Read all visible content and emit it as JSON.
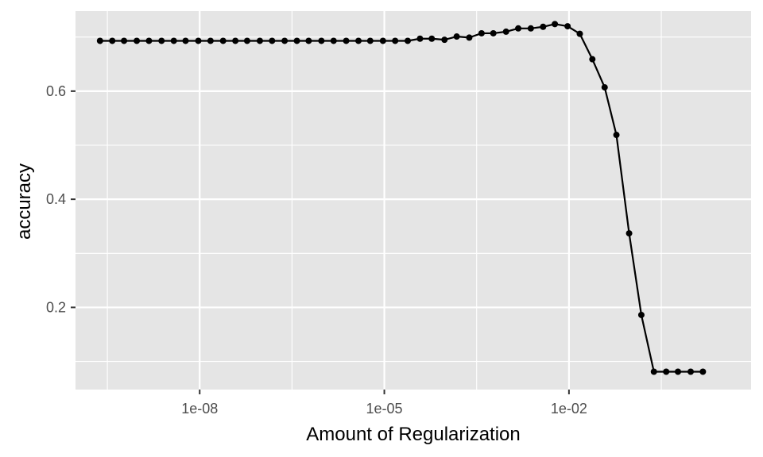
{
  "chart_data": {
    "type": "line",
    "title": "",
    "xlabel": "Amount of Regularization",
    "ylabel": "accuracy",
    "x_scale": "log10",
    "x_ticks": [
      "1e-08",
      "1e-05",
      "1e-02"
    ],
    "y_ticks": [
      "0.2",
      "0.4",
      "0.6"
    ],
    "xlim": [
      9.6e-11,
      9.1
    ],
    "ylim": [
      0.048,
      0.748
    ],
    "grid": true,
    "legend": "none",
    "series": [
      {
        "x": [
          2.4e-10,
          3.8e-10,
          5.9e-10,
          9.5e-10,
          1.5e-09,
          2.4e-09,
          3.8e-09,
          5.9e-09,
          9.5e-09,
          1.5e-08,
          2.4e-08,
          3.8e-08,
          5.9e-08,
          9.5e-08,
          1.5e-07,
          2.4e-07,
          3.8e-07,
          5.9e-07,
          9.5e-07,
          1.5e-06,
          2.4e-06,
          3.8e-06,
          5.9e-06,
          9.5e-06,
          1.5e-05,
          2.4e-05,
          3.8e-05,
          5.9e-05,
          9.5e-05,
          0.00015,
          0.00024,
          0.00038,
          0.00059,
          0.00095,
          0.0015,
          0.0024,
          0.0038,
          0.0059,
          0.0095,
          0.015,
          0.024,
          0.038,
          0.059,
          0.095,
          0.15,
          0.24,
          0.38,
          0.59,
          0.95,
          1.5
        ],
        "y": [
          0.693,
          0.693,
          0.693,
          0.693,
          0.693,
          0.693,
          0.693,
          0.693,
          0.693,
          0.693,
          0.693,
          0.693,
          0.693,
          0.693,
          0.693,
          0.693,
          0.693,
          0.693,
          0.693,
          0.693,
          0.693,
          0.693,
          0.693,
          0.693,
          0.693,
          0.693,
          0.697,
          0.697,
          0.695,
          0.701,
          0.699,
          0.707,
          0.707,
          0.71,
          0.716,
          0.716,
          0.719,
          0.724,
          0.72,
          0.706,
          0.659,
          0.607,
          0.519,
          0.337,
          0.186,
          0.081,
          0.081,
          0.081,
          0.081,
          0.081
        ]
      }
    ],
    "colors": {
      "panel": "#e5e5e5",
      "grid": "#ffffff",
      "line": "#000000",
      "tick_text": "#4d4d4d",
      "tick_mark": "#333333"
    }
  }
}
